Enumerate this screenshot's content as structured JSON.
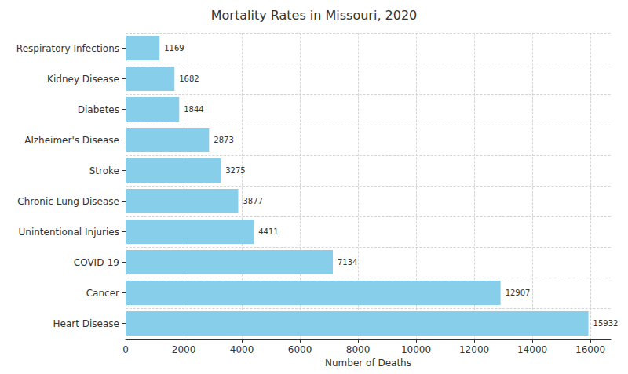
{
  "chart_data": {
    "type": "bar",
    "orientation": "horizontal",
    "title": "Mortality Rates in Missouri, 2020",
    "x_label": "Number of Deaths",
    "categories": [
      "Heart Disease",
      "Cancer",
      "COVID-19",
      "Unintentional Injuries",
      "Chronic Lung Disease",
      "Stroke",
      "Alzheimer's Disease",
      "Diabetes",
      "Kidney Disease",
      "Respiratory Infections"
    ],
    "values": [
      15932,
      12907,
      7134,
      4411,
      3877,
      3275,
      2873,
      1844,
      1682,
      1169
    ],
    "color": "#87ceeb",
    "xlim": [
      0,
      16700
    ],
    "xticks": [
      0,
      2000,
      4000,
      6000,
      8000,
      10000,
      12000,
      14000,
      16000
    ],
    "grid": true,
    "data_labels": true
  }
}
